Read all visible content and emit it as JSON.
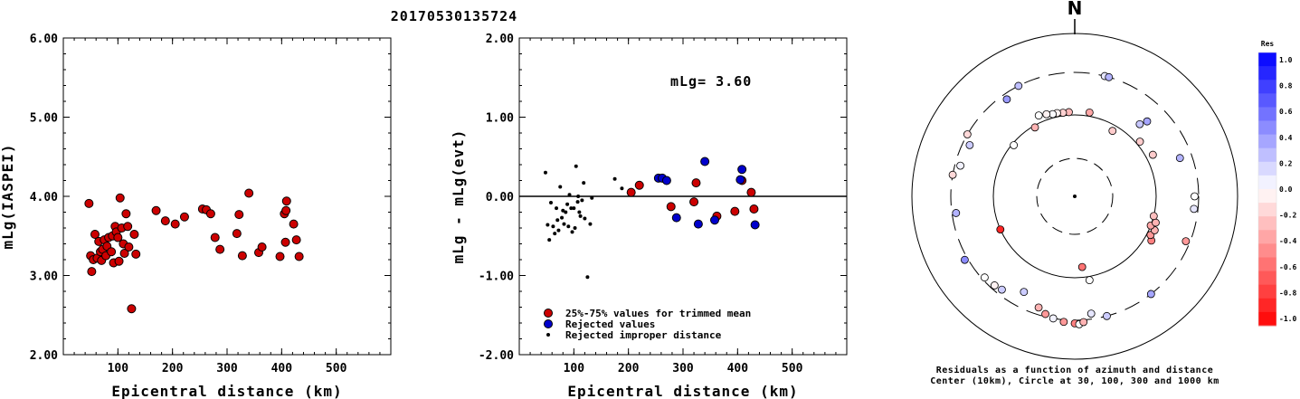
{
  "title": "20170530135724",
  "chart_data": [
    {
      "type": "scatter",
      "panel": "magnitude-vs-distance",
      "xlabel": "Epicentral distance (km)",
      "ylabel": "mLg(IASPEI)",
      "xlim": [
        0,
        600
      ],
      "ylim": [
        2.0,
        6.0
      ],
      "xticks": [
        "100",
        "200",
        "300",
        "400",
        "500"
      ],
      "yticks": [
        "2.00",
        "3.00",
        "4.00",
        "5.00",
        "6.00"
      ],
      "marker_color": "#cc0000",
      "points": [
        [
          47,
          3.91
        ],
        [
          50,
          3.25
        ],
        [
          52,
          3.05
        ],
        [
          55,
          3.2
        ],
        [
          58,
          3.52
        ],
        [
          62,
          3.22
        ],
        [
          65,
          3.43
        ],
        [
          68,
          3.3
        ],
        [
          70,
          3.19
        ],
        [
          72,
          3.33
        ],
        [
          75,
          3.45
        ],
        [
          78,
          3.25
        ],
        [
          80,
          3.37
        ],
        [
          83,
          3.48
        ],
        [
          88,
          3.3
        ],
        [
          90,
          3.5
        ],
        [
          92,
          3.16
        ],
        [
          95,
          3.62
        ],
        [
          97,
          3.55
        ],
        [
          100,
          3.48
        ],
        [
          102,
          3.18
        ],
        [
          104,
          3.98
        ],
        [
          107,
          3.6
        ],
        [
          110,
          3.4
        ],
        [
          112,
          3.28
        ],
        [
          115,
          3.78
        ],
        [
          118,
          3.62
        ],
        [
          120,
          3.36
        ],
        [
          125,
          2.58
        ],
        [
          130,
          3.52
        ],
        [
          133,
          3.27
        ],
        [
          170,
          3.82
        ],
        [
          187,
          3.69
        ],
        [
          205,
          3.65
        ],
        [
          222,
          3.74
        ],
        [
          255,
          3.84
        ],
        [
          262,
          3.83
        ],
        [
          270,
          3.78
        ],
        [
          278,
          3.48
        ],
        [
          287,
          3.33
        ],
        [
          318,
          3.53
        ],
        [
          322,
          3.77
        ],
        [
          328,
          3.25
        ],
        [
          340,
          4.04
        ],
        [
          358,
          3.29
        ],
        [
          364,
          3.36
        ],
        [
          397,
          3.24
        ],
        [
          405,
          3.78
        ],
        [
          407,
          3.42
        ],
        [
          408,
          3.82
        ],
        [
          409,
          3.94
        ],
        [
          422,
          3.65
        ],
        [
          427,
          3.45
        ],
        [
          432,
          3.24
        ]
      ]
    },
    {
      "type": "scatter",
      "panel": "residual-vs-distance",
      "xlabel": "Epicentral distance (km)",
      "ylabel": "mLg - mLg(evt)",
      "xlim": [
        0,
        600
      ],
      "ylim": [
        -2.0,
        2.0
      ],
      "xticks": [
        "100",
        "200",
        "300",
        "400",
        "500"
      ],
      "yticks": [
        "-2.00",
        "-1.00",
        "0.00",
        "1.00",
        "2.00"
      ],
      "annotation": "mLg= 3.60",
      "legend": [
        {
          "label": "25%-75% values for trimmed mean",
          "color": "#cc0000"
        },
        {
          "label": "Rejected values",
          "color": "#0000cc"
        },
        {
          "label": "Rejected improper distance",
          "color": "#000000"
        }
      ],
      "series": [
        {
          "name": "25%-75% values for trimmed mean",
          "color": "#cc0000",
          "points": [
            [
              205,
              0.05
            ],
            [
              220,
              0.14
            ],
            [
              278,
              -0.13
            ],
            [
              320,
              -0.07
            ],
            [
              324,
              0.17
            ],
            [
              362,
              -0.25
            ],
            [
              395,
              -0.19
            ],
            [
              408,
              0.2
            ],
            [
              425,
              0.05
            ],
            [
              430,
              -0.16
            ]
          ]
        },
        {
          "name": "Rejected values",
          "color": "#0000cc",
          "points": [
            [
              255,
              0.23
            ],
            [
              262,
              0.23
            ],
            [
              270,
              0.2
            ],
            [
              288,
              -0.27
            ],
            [
              328,
              -0.35
            ],
            [
              340,
              0.44
            ],
            [
              358,
              -0.3
            ],
            [
              405,
              0.21
            ],
            [
              408,
              0.34
            ],
            [
              432,
              -0.36
            ]
          ]
        },
        {
          "name": "Rejected improper distance",
          "color": "#000000",
          "points": [
            [
              48,
              0.3
            ],
            [
              52,
              -0.36
            ],
            [
              55,
              -0.55
            ],
            [
              58,
              -0.08
            ],
            [
              62,
              -0.38
            ],
            [
              65,
              -0.47
            ],
            [
              68,
              -0.15
            ],
            [
              70,
              -0.3
            ],
            [
              72,
              -0.43
            ],
            [
              75,
              0.12
            ],
            [
              78,
              -0.27
            ],
            [
              80,
              -0.18
            ],
            [
              82,
              -0.35
            ],
            [
              85,
              -0.2
            ],
            [
              88,
              -0.1
            ],
            [
              90,
              -0.38
            ],
            [
              92,
              0.02
            ],
            [
              95,
              -0.15
            ],
            [
              97,
              -0.45
            ],
            [
              100,
              -0.15
            ],
            [
              102,
              -0.4
            ],
            [
              104,
              0.38
            ],
            [
              107,
              -0.07
            ],
            [
              108,
              0.0
            ],
            [
              110,
              -0.2
            ],
            [
              112,
              -0.25
            ],
            [
              115,
              -0.05
            ],
            [
              118,
              0.17
            ],
            [
              120,
              -0.28
            ],
            [
              125,
              -1.02
            ],
            [
              130,
              -0.35
            ],
            [
              133,
              -0.02
            ],
            [
              175,
              0.22
            ],
            [
              188,
              0.1
            ]
          ]
        }
      ]
    },
    {
      "type": "scatter",
      "panel": "azimuth-distance-residuals",
      "north_label": "N",
      "caption_line1": "Residuals as a function of azimuth and distance",
      "caption_line2": "Center (10km), Circle at 30, 100, 300 and 1000 km",
      "colorbar_title": "Res",
      "colorbar_ticks": [
        "1.0",
        "0.8",
        "0.6",
        "0.4",
        "0.2",
        "0.0",
        "-0.2",
        "-0.4",
        "-0.6",
        "-0.8",
        "-1.0"
      ],
      "positive_color": "#0000ff",
      "negative_color": "#ff0000",
      "stations": [
        {
          "az": 44,
          "dist": 180,
          "res": 0.35
        },
        {
          "az": 42,
          "dist": 150,
          "res": 0.22
        },
        {
          "az": 10,
          "dist": 110,
          "res": -0.35
        },
        {
          "az": 356,
          "dist": 108,
          "res": -0.28
        },
        {
          "az": 352,
          "dist": 108,
          "res": -0.18
        },
        {
          "az": 348,
          "dist": 110,
          "res": -0.05
        },
        {
          "az": 345,
          "dist": 110,
          "res": 0.02
        },
        {
          "az": 341,
          "dist": 115,
          "res": -0.05
        },
        {
          "az": 336,
          "dist": 120,
          "res": 0.0
        },
        {
          "az": 330,
          "dist": 95,
          "res": -0.3
        },
        {
          "az": 310,
          "dist": 95,
          "res": 0.0
        },
        {
          "az": 325,
          "dist": 260,
          "res": 0.4
        },
        {
          "az": 333,
          "dist": 300,
          "res": 0.25
        },
        {
          "az": 14,
          "dist": 300,
          "res": 0.1
        },
        {
          "az": 16,
          "dist": 300,
          "res": 0.3
        },
        {
          "az": 300,
          "dist": 300,
          "res": -0.15
        },
        {
          "az": 296,
          "dist": 250,
          "res": 0.2
        },
        {
          "az": 285,
          "dist": 260,
          "res": 0.05
        },
        {
          "az": 280,
          "dist": 300,
          "res": -0.15
        },
        {
          "az": 262,
          "dist": 270,
          "res": 0.3
        },
        {
          "az": 240,
          "dist": 330,
          "res": 0.45
        },
        {
          "az": 246,
          "dist": 100,
          "res": -0.85
        },
        {
          "az": 228,
          "dist": 280,
          "res": 0.0
        },
        {
          "az": 222,
          "dist": 270,
          "res": -0.05
        },
        {
          "az": 218,
          "dist": 260,
          "res": 0.2
        },
        {
          "az": 208,
          "dist": 200,
          "res": 0.2
        },
        {
          "az": 198,
          "dist": 250,
          "res": -0.3
        },
        {
          "az": 194,
          "dist": 280,
          "res": -0.4
        },
        {
          "az": 190,
          "dist": 300,
          "res": 0.05
        },
        {
          "az": 185,
          "dist": 320,
          "res": -0.4
        },
        {
          "az": 180,
          "dist": 330,
          "res": -0.5
        },
        {
          "az": 178,
          "dist": 340,
          "res": 0.0
        },
        {
          "az": 176,
          "dist": 320,
          "res": -0.3
        },
        {
          "az": 172,
          "dist": 260,
          "res": 0.1
        },
        {
          "az": 170,
          "dist": 110,
          "res": 0.0
        },
        {
          "az": 174,
          "dist": 75,
          "res": -0.55
        },
        {
          "az": 165,
          "dist": 300,
          "res": 0.2
        },
        {
          "az": 142,
          "dist": 300,
          "res": 0.35
        },
        {
          "az": 120,
          "dist": 120,
          "res": -0.5
        },
        {
          "az": 117,
          "dist": 110,
          "res": -0.4
        },
        {
          "az": 113,
          "dist": 115,
          "res": -0.3
        },
        {
          "az": 111,
          "dist": 100,
          "res": -0.35
        },
        {
          "az": 108,
          "dist": 110,
          "res": -0.3
        },
        {
          "az": 104,
          "dist": 100,
          "res": -0.25
        },
        {
          "az": 112,
          "dist": 270,
          "res": -0.4
        },
        {
          "az": 96,
          "dist": 270,
          "res": 0.1
        },
        {
          "az": 90,
          "dist": 270,
          "res": 0.0
        },
        {
          "az": 70,
          "dist": 220,
          "res": 0.3
        },
        {
          "az": 62,
          "dist": 120,
          "res": -0.2
        },
        {
          "az": 50,
          "dist": 110,
          "res": -0.2
        },
        {
          "az": 30,
          "dist": 85,
          "res": -0.2
        }
      ]
    }
  ]
}
